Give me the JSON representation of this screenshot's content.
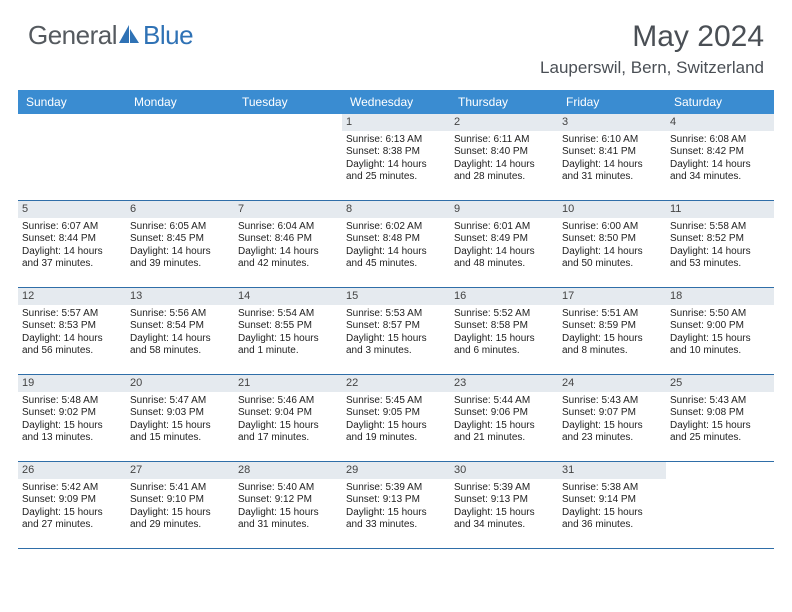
{
  "brand": {
    "name": "General",
    "accent_suffix": "Blue",
    "logo_color": "#2f72b5"
  },
  "header": {
    "month_title": "May 2024",
    "location": "Lauperswil, Bern, Switzerland"
  },
  "colors": {
    "header_bg": "#3a8cd1",
    "header_text": "#ffffff",
    "daynum_bg": "#e5eaef",
    "row_border": "#2f6ea8",
    "body_text": "#222222",
    "title_text": "#4a4f55"
  },
  "day_headers": [
    "Sunday",
    "Monday",
    "Tuesday",
    "Wednesday",
    "Thursday",
    "Friday",
    "Saturday"
  ],
  "weeks": [
    [
      {
        "empty": true
      },
      {
        "empty": true
      },
      {
        "empty": true
      },
      {
        "num": "1",
        "sunrise": "6:13 AM",
        "sunset": "8:38 PM",
        "daylight": "14 hours and 25 minutes."
      },
      {
        "num": "2",
        "sunrise": "6:11 AM",
        "sunset": "8:40 PM",
        "daylight": "14 hours and 28 minutes."
      },
      {
        "num": "3",
        "sunrise": "6:10 AM",
        "sunset": "8:41 PM",
        "daylight": "14 hours and 31 minutes."
      },
      {
        "num": "4",
        "sunrise": "6:08 AM",
        "sunset": "8:42 PM",
        "daylight": "14 hours and 34 minutes."
      }
    ],
    [
      {
        "num": "5",
        "sunrise": "6:07 AM",
        "sunset": "8:44 PM",
        "daylight": "14 hours and 37 minutes."
      },
      {
        "num": "6",
        "sunrise": "6:05 AM",
        "sunset": "8:45 PM",
        "daylight": "14 hours and 39 minutes."
      },
      {
        "num": "7",
        "sunrise": "6:04 AM",
        "sunset": "8:46 PM",
        "daylight": "14 hours and 42 minutes."
      },
      {
        "num": "8",
        "sunrise": "6:02 AM",
        "sunset": "8:48 PM",
        "daylight": "14 hours and 45 minutes."
      },
      {
        "num": "9",
        "sunrise": "6:01 AM",
        "sunset": "8:49 PM",
        "daylight": "14 hours and 48 minutes."
      },
      {
        "num": "10",
        "sunrise": "6:00 AM",
        "sunset": "8:50 PM",
        "daylight": "14 hours and 50 minutes."
      },
      {
        "num": "11",
        "sunrise": "5:58 AM",
        "sunset": "8:52 PM",
        "daylight": "14 hours and 53 minutes."
      }
    ],
    [
      {
        "num": "12",
        "sunrise": "5:57 AM",
        "sunset": "8:53 PM",
        "daylight": "14 hours and 56 minutes."
      },
      {
        "num": "13",
        "sunrise": "5:56 AM",
        "sunset": "8:54 PM",
        "daylight": "14 hours and 58 minutes."
      },
      {
        "num": "14",
        "sunrise": "5:54 AM",
        "sunset": "8:55 PM",
        "daylight": "15 hours and 1 minute."
      },
      {
        "num": "15",
        "sunrise": "5:53 AM",
        "sunset": "8:57 PM",
        "daylight": "15 hours and 3 minutes."
      },
      {
        "num": "16",
        "sunrise": "5:52 AM",
        "sunset": "8:58 PM",
        "daylight": "15 hours and 6 minutes."
      },
      {
        "num": "17",
        "sunrise": "5:51 AM",
        "sunset": "8:59 PM",
        "daylight": "15 hours and 8 minutes."
      },
      {
        "num": "18",
        "sunrise": "5:50 AM",
        "sunset": "9:00 PM",
        "daylight": "15 hours and 10 minutes."
      }
    ],
    [
      {
        "num": "19",
        "sunrise": "5:48 AM",
        "sunset": "9:02 PM",
        "daylight": "15 hours and 13 minutes."
      },
      {
        "num": "20",
        "sunrise": "5:47 AM",
        "sunset": "9:03 PM",
        "daylight": "15 hours and 15 minutes."
      },
      {
        "num": "21",
        "sunrise": "5:46 AM",
        "sunset": "9:04 PM",
        "daylight": "15 hours and 17 minutes."
      },
      {
        "num": "22",
        "sunrise": "5:45 AM",
        "sunset": "9:05 PM",
        "daylight": "15 hours and 19 minutes."
      },
      {
        "num": "23",
        "sunrise": "5:44 AM",
        "sunset": "9:06 PM",
        "daylight": "15 hours and 21 minutes."
      },
      {
        "num": "24",
        "sunrise": "5:43 AM",
        "sunset": "9:07 PM",
        "daylight": "15 hours and 23 minutes."
      },
      {
        "num": "25",
        "sunrise": "5:43 AM",
        "sunset": "9:08 PM",
        "daylight": "15 hours and 25 minutes."
      }
    ],
    [
      {
        "num": "26",
        "sunrise": "5:42 AM",
        "sunset": "9:09 PM",
        "daylight": "15 hours and 27 minutes."
      },
      {
        "num": "27",
        "sunrise": "5:41 AM",
        "sunset": "9:10 PM",
        "daylight": "15 hours and 29 minutes."
      },
      {
        "num": "28",
        "sunrise": "5:40 AM",
        "sunset": "9:12 PM",
        "daylight": "15 hours and 31 minutes."
      },
      {
        "num": "29",
        "sunrise": "5:39 AM",
        "sunset": "9:13 PM",
        "daylight": "15 hours and 33 minutes."
      },
      {
        "num": "30",
        "sunrise": "5:39 AM",
        "sunset": "9:13 PM",
        "daylight": "15 hours and 34 minutes."
      },
      {
        "num": "31",
        "sunrise": "5:38 AM",
        "sunset": "9:14 PM",
        "daylight": "15 hours and 36 minutes."
      },
      {
        "empty": true
      }
    ]
  ],
  "labels": {
    "sunrise": "Sunrise:",
    "sunset": "Sunset:",
    "daylight": "Daylight:"
  }
}
